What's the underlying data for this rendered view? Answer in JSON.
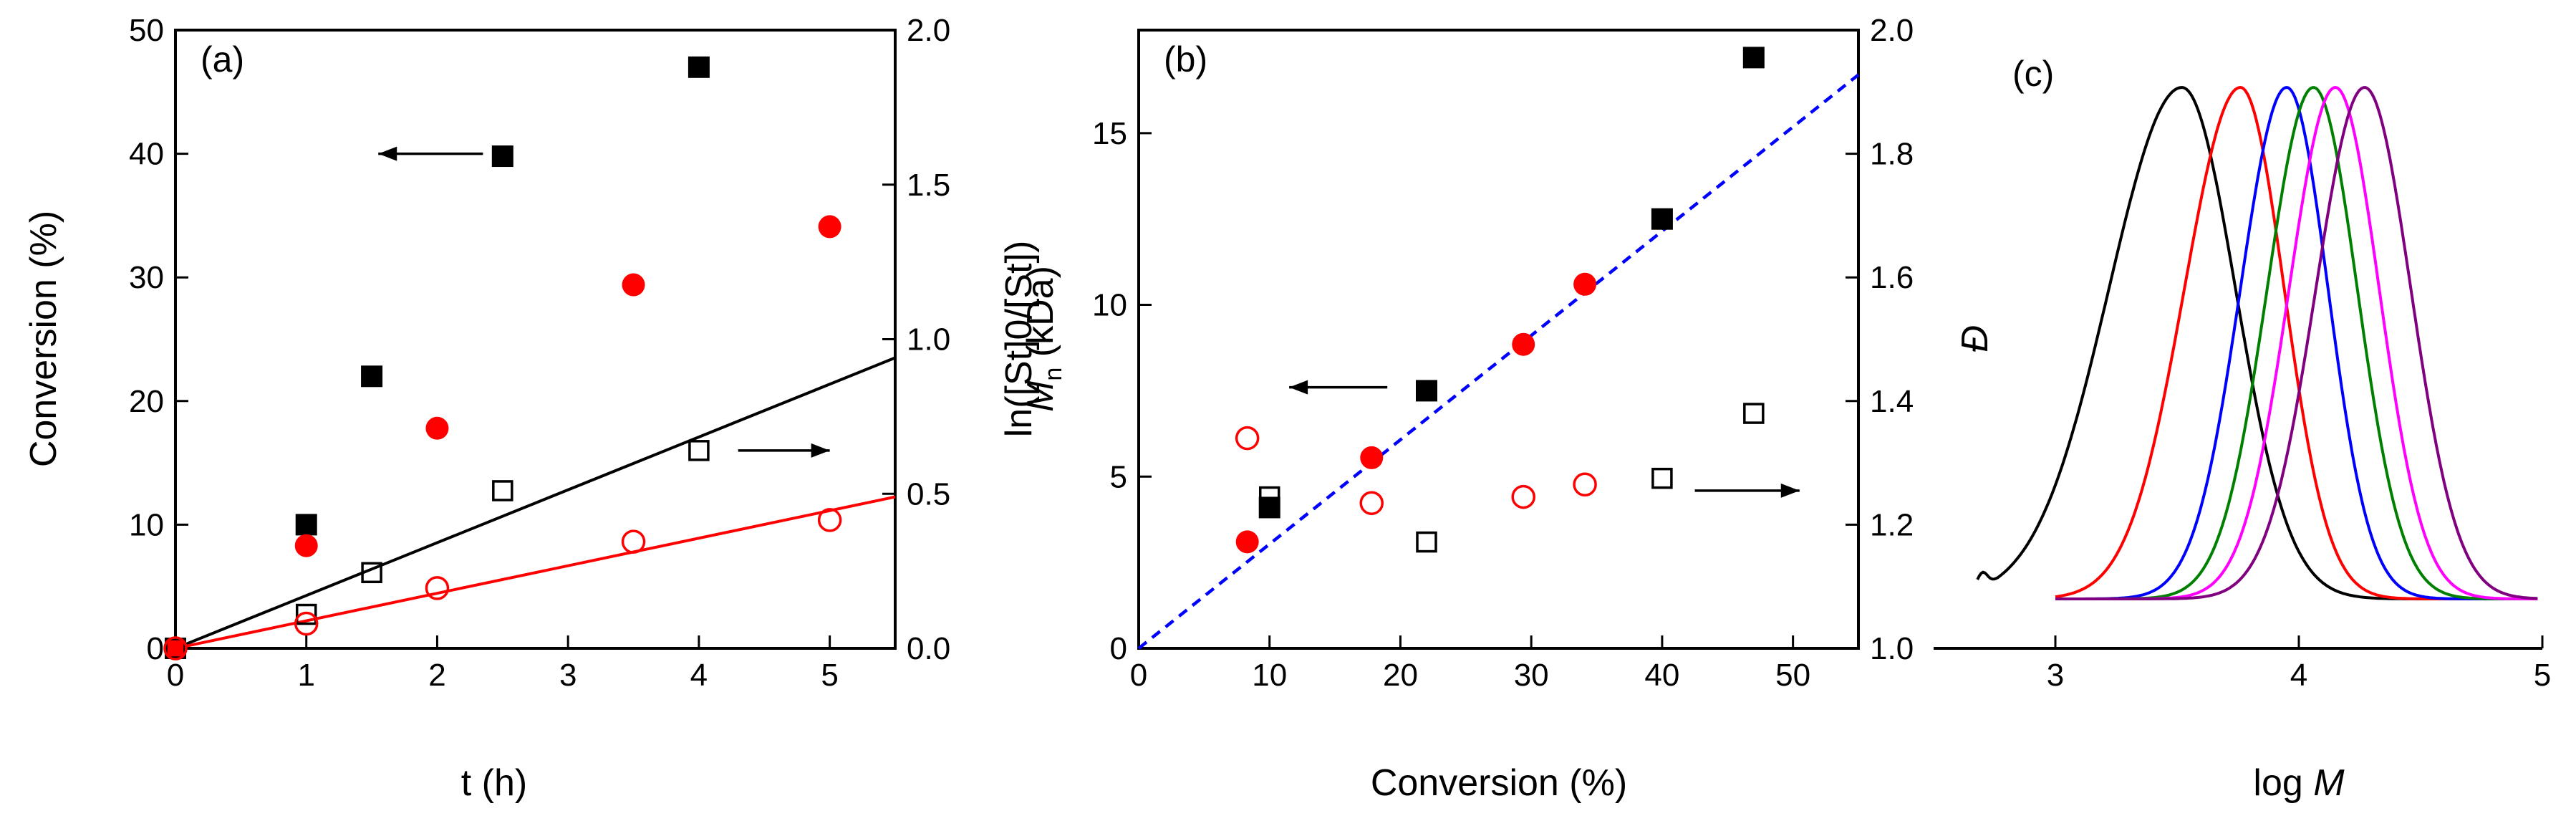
{
  "chart_data": [
    {
      "panel": "(a)",
      "type": "scatter",
      "xlabel": "t (h)",
      "ylabel_left": "Conversion (%)",
      "ylabel_right": "ln([St]0/[St])",
      "xlim": [
        0,
        5.5
      ],
      "ylim_left": [
        0,
        50
      ],
      "ylim_right": [
        0,
        2.0
      ],
      "x_ticks": [
        "0",
        "1",
        "2",
        "3",
        "4",
        "5"
      ],
      "y_left_ticks": [
        "0",
        "10",
        "20",
        "30",
        "40",
        "50"
      ],
      "y_right_ticks": [
        "0.0",
        "0.5",
        "1.0",
        "1.5",
        "2.0"
      ],
      "series": [
        {
          "axis": "left",
          "marker": "filled-square",
          "color": "#000000",
          "points": [
            [
              0,
              0
            ],
            [
              1,
              10
            ],
            [
              1.5,
              22
            ],
            [
              2.5,
              39.8
            ],
            [
              4,
              47
            ]
          ]
        },
        {
          "axis": "left",
          "marker": "filled-circle",
          "color": "#ff0000",
          "points": [
            [
              0,
              0
            ],
            [
              1,
              8.3
            ],
            [
              2,
              17.8
            ],
            [
              3.5,
              29.4
            ],
            [
              5,
              34.1
            ]
          ]
        },
        {
          "axis": "right",
          "marker": "open-square",
          "color": "#000000",
          "points": [
            [
              0,
              0
            ],
            [
              1,
              0.11
            ],
            [
              1.5,
              0.245
            ],
            [
              2.5,
              0.51
            ],
            [
              4,
              0.64
            ]
          ],
          "fit": [
            [
              0,
              0
            ],
            [
              5.5,
              0.94
            ]
          ]
        },
        {
          "axis": "right",
          "marker": "open-circle",
          "color": "#ff0000",
          "points": [
            [
              0,
              0
            ],
            [
              1,
              0.08
            ],
            [
              2,
              0.195
            ],
            [
              3.5,
              0.345
            ],
            [
              5,
              0.415
            ]
          ],
          "fit": [
            [
              0,
              0
            ],
            [
              5.5,
              0.49
            ]
          ]
        }
      ],
      "arrows": [
        {
          "dir": "left",
          "x": [
            2.35,
            1.55
          ],
          "y": 40,
          "axis": "left"
        },
        {
          "dir": "right",
          "x": [
            4.3,
            5.0
          ],
          "y": 0.64,
          "axis": "right"
        }
      ]
    },
    {
      "panel": "(b)",
      "type": "scatter",
      "xlabel": "Conversion (%)",
      "ylabel_left": "Mn (kDa)",
      "ylabel_right": "Đ",
      "xlim": [
        0,
        55
      ],
      "ylim_left": [
        0,
        18
      ],
      "ylim_right": [
        1.0,
        2.0
      ],
      "x_ticks": [
        "0",
        "10",
        "20",
        "30",
        "40",
        "50"
      ],
      "y_left_ticks": [
        "0",
        "5",
        "10",
        "15"
      ],
      "y_right_ticks": [
        "1.0",
        "1.2",
        "1.4",
        "1.6",
        "1.8",
        "2.0"
      ],
      "series": [
        {
          "axis": "left",
          "marker": "filled-square",
          "color": "#000000",
          "points": [
            [
              10,
              4.1
            ],
            [
              22,
              7.5
            ],
            [
              40,
              12.5
            ],
            [
              47,
              17.2
            ]
          ]
        },
        {
          "axis": "left",
          "marker": "filled-circle",
          "color": "#ff0000",
          "points": [
            [
              8.3,
              3.1
            ],
            [
              17.8,
              5.55
            ],
            [
              29.4,
              8.85
            ],
            [
              34.1,
              10.6
            ]
          ]
        },
        {
          "axis": "right",
          "marker": "open-square",
          "color": "#000000",
          "points": [
            [
              10,
              1.245
            ],
            [
              22,
              1.172
            ],
            [
              40,
              1.275
            ],
            [
              47,
              1.38
            ]
          ]
        },
        {
          "axis": "right",
          "marker": "open-circle",
          "color": "#ff0000",
          "points": [
            [
              8.3,
              1.34
            ],
            [
              17.8,
              1.235
            ],
            [
              29.4,
              1.245
            ],
            [
              34.1,
              1.265
            ]
          ]
        }
      ],
      "theory_line": {
        "color": "#0000ff",
        "points": [
          [
            0,
            0
          ],
          [
            55,
            16.7
          ]
        ]
      },
      "arrows": [
        {
          "dir": "left",
          "x": [
            19,
            11.5
          ],
          "y": 7.6,
          "axis": "left"
        },
        {
          "dir": "right",
          "x": [
            42.5,
            50.5
          ],
          "y": 1.255,
          "axis": "right"
        }
      ]
    },
    {
      "panel": "(c)",
      "type": "line",
      "xlabel": "log M",
      "xlim": [
        2.5,
        5.0
      ],
      "x_ticks": [
        "3",
        "4",
        "5"
      ],
      "series": [
        {
          "color": "#000000",
          "peak": 3.52,
          "left_width": 0.3,
          "right_width": 0.22,
          "start": 2.68
        },
        {
          "color": "#ff0000",
          "peak": 3.76,
          "left_width": 0.23,
          "right_width": 0.18,
          "start": 3.0
        },
        {
          "color": "#0000ff",
          "peak": 3.95,
          "left_width": 0.19,
          "right_width": 0.17,
          "start": 3.0
        },
        {
          "color": "#008000",
          "peak": 4.06,
          "left_width": 0.19,
          "right_width": 0.18,
          "start": 3.0
        },
        {
          "color": "#ff00ff",
          "peak": 4.15,
          "left_width": 0.19,
          "right_width": 0.18,
          "start": 3.0
        },
        {
          "color": "#800080",
          "peak": 4.27,
          "left_width": 0.2,
          "right_width": 0.19,
          "start": 3.0
        }
      ]
    }
  ]
}
